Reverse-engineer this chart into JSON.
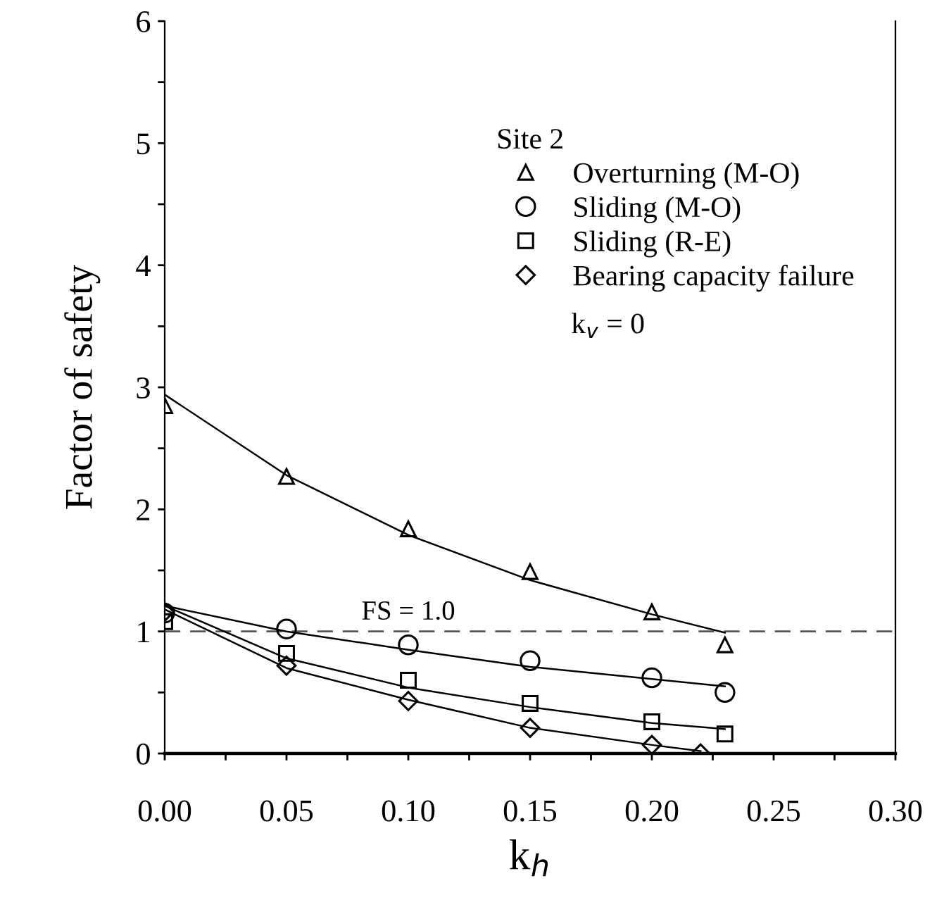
{
  "chart_data": {
    "type": "scatter",
    "xlabel": "k$_{h}$",
    "ylabel": "Factor of safety",
    "legend_title": "Site 2",
    "xlim": [
      0,
      0.3
    ],
    "ylim": [
      0,
      6
    ],
    "xticks": [
      {
        "value": 0,
        "label": "0.00"
      },
      {
        "value": 0.025,
        "label": null
      },
      {
        "value": 0.05,
        "label": "0.05"
      },
      {
        "value": 0.075,
        "label": null
      },
      {
        "value": 0.1,
        "label": "0.10"
      },
      {
        "value": 0.125,
        "label": null
      },
      {
        "value": 0.15,
        "label": "0.15"
      },
      {
        "value": 0.175,
        "label": null
      },
      {
        "value": 0.2,
        "label": "0.20"
      },
      {
        "value": 0.225,
        "label": null
      },
      {
        "value": 0.25,
        "label": "0.25"
      },
      {
        "value": 0.275,
        "label": null
      },
      {
        "value": 0.3,
        "label": "0.30"
      }
    ],
    "yticks": [
      0,
      {
        "value": 0.5,
        "label": null
      },
      1,
      {
        "value": 1.5,
        "label": null
      },
      2,
      {
        "value": 2.5,
        "label": null
      },
      3,
      {
        "value": 3.5,
        "label": null
      },
      4,
      {
        "value": 4.5,
        "label": null
      },
      5,
      {
        "value": 5.5,
        "label": null
      },
      6
    ],
    "grid": false,
    "legend": "top right",
    "ref_lines": [
      {
        "axis": "y",
        "value": 1,
        "label": "FS = 1.0",
        "color": "#555555",
        "line_style": "dashed"
      }
    ],
    "annotations": [
      "k$_{v}$ = 0"
    ],
    "series": [
      {
        "name": "Overturning (M-O)",
        "color": "#000000",
        "marker": "triangle",
        "x": [
          0,
          0.05,
          0.1,
          0.15,
          0.2,
          0.23
        ],
        "values": [
          2.85,
          2.27,
          1.84,
          1.49,
          1.16,
          0.89
        ]
      },
      {
        "name": "Sliding (M-O)",
        "color": "#000000",
        "marker": "circle",
        "x": [
          0,
          0.05,
          0.1,
          0.15,
          0.2,
          0.23
        ],
        "values": [
          1.15,
          1.02,
          0.89,
          0.76,
          0.62,
          0.5
        ]
      },
      {
        "name": "Sliding (R-E)",
        "color": "#000000",
        "marker": "square",
        "x": [
          0,
          0.05,
          0.1,
          0.15,
          0.2,
          0.23
        ],
        "values": [
          1.08,
          0.82,
          0.6,
          0.41,
          0.26,
          0.16
        ]
      },
      {
        "name": "Bearing capacity failure",
        "color": "#000000",
        "marker": "diamond",
        "x": [
          0,
          0.05,
          0.1,
          0.15,
          0.2,
          0.22
        ],
        "values": [
          1.16,
          0.72,
          0.43,
          0.21,
          0.07,
          0.0
        ]
      },
      {
        "type": "line",
        "color": "#000000",
        "x": [
          0,
          0.05,
          0.1,
          0.15,
          0.2,
          0.23
        ],
        "values": [
          2.94,
          2.28,
          1.79,
          1.42,
          1.14,
          0.99
        ]
      },
      {
        "type": "line",
        "color": "#000000",
        "x": [
          0,
          0.05,
          0.1,
          0.15,
          0.2,
          0.23
        ],
        "values": [
          1.21,
          1.0,
          0.85,
          0.71,
          0.61,
          0.55
        ]
      },
      {
        "type": "line",
        "color": "#000000",
        "x": [
          0,
          0.05,
          0.1,
          0.15,
          0.2,
          0.23
        ],
        "values": [
          1.21,
          0.78,
          0.54,
          0.38,
          0.25,
          0.2
        ]
      },
      {
        "type": "line",
        "color": "#000000",
        "x": [
          0,
          0.05,
          0.1,
          0.15,
          0.2,
          0.22
        ],
        "values": [
          1.18,
          0.7,
          0.44,
          0.21,
          0.07,
          0.02
        ]
      }
    ]
  }
}
